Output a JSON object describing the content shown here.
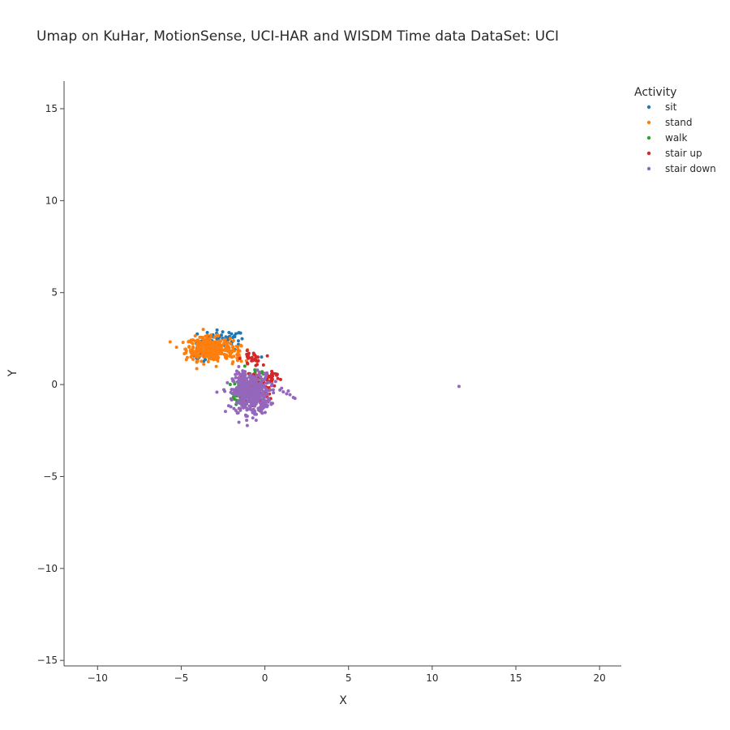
{
  "chart_data": {
    "type": "scatter",
    "title": "Umap on KuHar, MotionSense, UCI-HAR and WISDM   Time data   DataSet: UCI",
    "xlabel": "X",
    "ylabel": "Y",
    "xlim": [
      -12,
      21.3
    ],
    "ylim": [
      -15.3,
      16.5
    ],
    "xticks": [
      -10,
      -5,
      0,
      5,
      10,
      15,
      20
    ],
    "yticks": [
      -15,
      -10,
      -5,
      0,
      5,
      10,
      15
    ],
    "xtick_labels": [
      "−10",
      "−5",
      "0",
      "5",
      "10",
      "15",
      "20"
    ],
    "ytick_labels": [
      "−15",
      "−10",
      "−5",
      "0",
      "5",
      "10",
      "15"
    ],
    "grid": false,
    "legend": {
      "title": "Activity",
      "position": "top-right"
    },
    "series": [
      {
        "name": "sit",
        "color": "#1f77b4",
        "clusters": [
          {
            "cx": -2.6,
            "cy": 2.4,
            "sx": 0.7,
            "sy": 0.28,
            "n": 70
          },
          {
            "cx": -3.9,
            "cy": 1.6,
            "sx": 0.3,
            "sy": 0.25,
            "n": 15
          }
        ],
        "points": [
          [
            -0.2,
            1.5
          ],
          [
            -1.8,
            2.6
          ],
          [
            -3.1,
            2.7
          ]
        ]
      },
      {
        "name": "stand",
        "color": "#ff7f0e",
        "clusters": [
          {
            "cx": -3.4,
            "cy": 1.95,
            "sx": 0.65,
            "sy": 0.32,
            "n": 320
          },
          {
            "cx": -2.0,
            "cy": 1.7,
            "sx": 0.4,
            "sy": 0.28,
            "n": 50
          }
        ],
        "points": [
          [
            -1.1,
            1.3
          ],
          [
            -1.5,
            1.5
          ]
        ]
      },
      {
        "name": "walk",
        "color": "#2ca02c",
        "clusters": [
          {
            "cx": -1.5,
            "cy": -0.4,
            "sx": 0.2,
            "sy": 0.4,
            "n": 40
          },
          {
            "cx": -0.3,
            "cy": 0.3,
            "sx": 0.45,
            "sy": 0.25,
            "n": 25
          }
        ],
        "points": [
          [
            -1.2,
            1.0
          ],
          [
            -0.6,
            0.8
          ]
        ]
      },
      {
        "name": "stair up",
        "color": "#d62728",
        "clusters": [
          {
            "cx": -0.8,
            "cy": 1.4,
            "sx": 0.3,
            "sy": 0.2,
            "n": 30
          },
          {
            "cx": -0.6,
            "cy": -0.3,
            "sx": 0.5,
            "sy": 0.5,
            "n": 90
          },
          {
            "cx": 0.3,
            "cy": 0.4,
            "sx": 0.3,
            "sy": 0.2,
            "n": 25
          }
        ],
        "points": [
          [
            0.7,
            0.5
          ],
          [
            0.5,
            0.6
          ]
        ]
      },
      {
        "name": "stair down",
        "color": "#9467bd",
        "clusters": [
          {
            "cx": -0.8,
            "cy": -0.5,
            "sx": 0.55,
            "sy": 0.55,
            "n": 420
          },
          {
            "cx": -1.5,
            "cy": 0.2,
            "sx": 0.15,
            "sy": 0.35,
            "n": 30
          }
        ],
        "points": [
          [
            0.9,
            -0.3
          ],
          [
            1.1,
            -0.4
          ],
          [
            1.3,
            -0.5
          ],
          [
            1.5,
            -0.55
          ],
          [
            1.7,
            -0.7
          ],
          [
            1.8,
            -0.75
          ],
          [
            1.4,
            -0.35
          ],
          [
            1.0,
            -0.2
          ],
          [
            11.6,
            -0.1
          ]
        ]
      }
    ]
  }
}
